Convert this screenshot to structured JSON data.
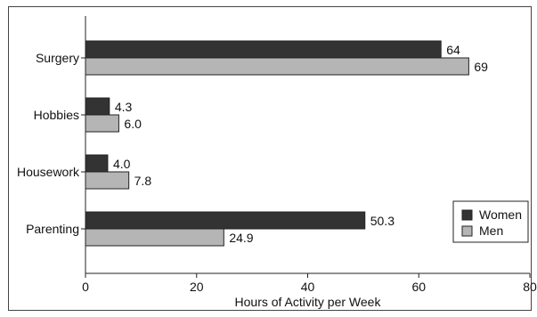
{
  "chart_data": {
    "type": "bar",
    "orientation": "horizontal",
    "categories": [
      "Surgery",
      "Hobbies",
      "Housework",
      "Parenting"
    ],
    "series": [
      {
        "name": "Women",
        "values": [
          64,
          4.3,
          4.0,
          50.3
        ],
        "labels": [
          "64",
          "4.3",
          "4.0",
          "50.3"
        ],
        "color": "#333333"
      },
      {
        "name": "Men",
        "values": [
          69,
          6.0,
          7.8,
          24.9
        ],
        "labels": [
          "69",
          "6.0",
          "7.8",
          "24.9"
        ],
        "color": "#b5b5b5"
      }
    ],
    "xlabel": "Hours of Activity per Week",
    "xlim": [
      0,
      80
    ],
    "xticks": [
      0,
      20,
      40,
      60,
      80
    ],
    "legend_position": "bottom-right",
    "grid": false
  }
}
